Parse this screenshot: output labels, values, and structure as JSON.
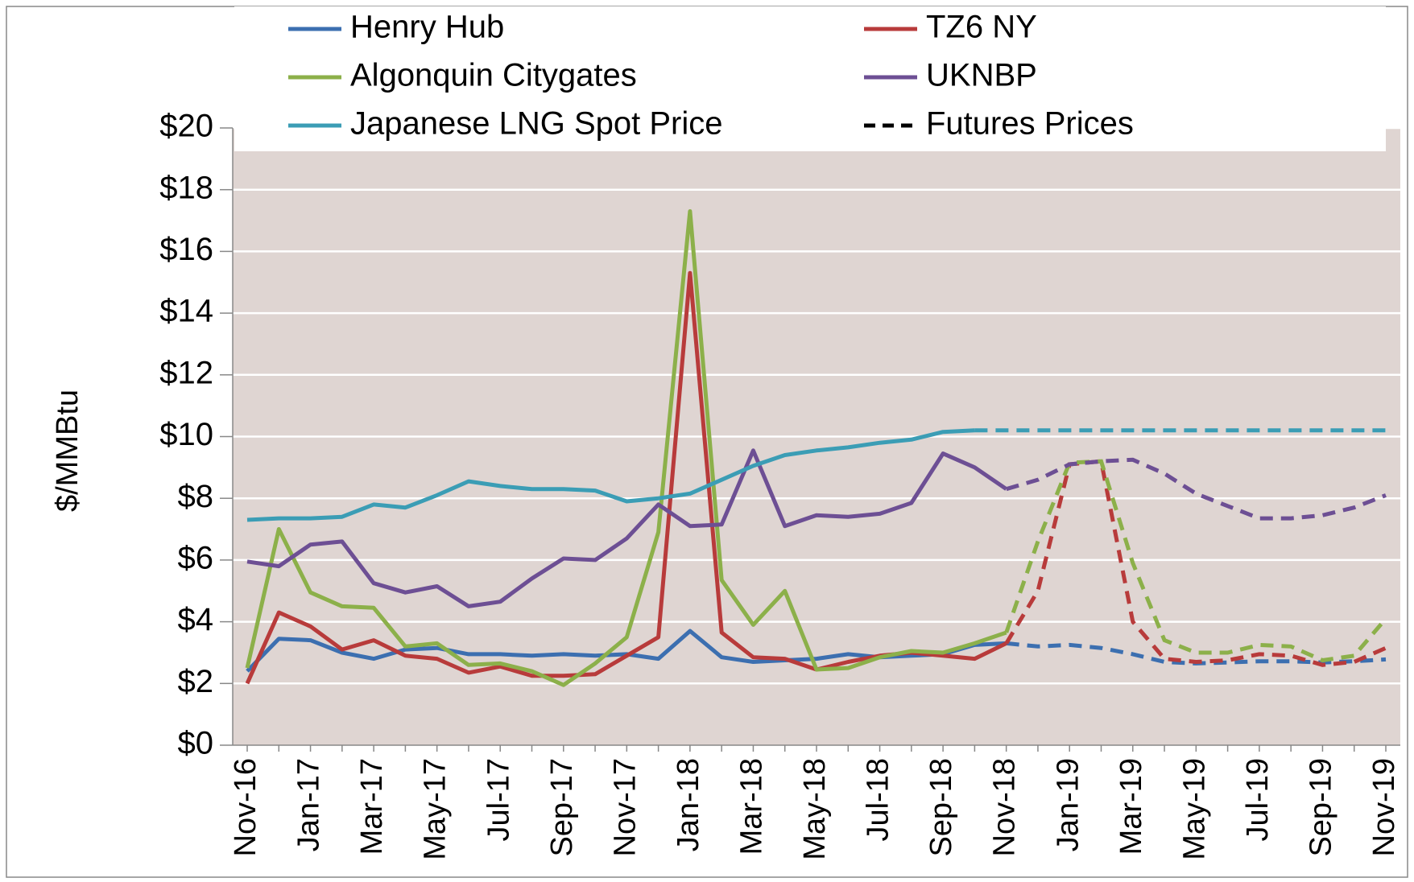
{
  "chart_data": {
    "type": "line",
    "y_label": "$/MMBtu",
    "categories": [
      "Nov-16",
      null,
      "Jan-17",
      null,
      "Mar-17",
      null,
      "May-17",
      null,
      "Jul-17",
      null,
      "Sep-17",
      null,
      "Nov-17",
      null,
      "Jan-18",
      null,
      "Mar-18",
      null,
      "May-18",
      null,
      "Jul-18",
      null,
      "Sep-18",
      null,
      "Nov-18",
      null,
      "Jan-19",
      null,
      "Mar-19",
      null,
      "May-19",
      null,
      "Jul-19",
      null,
      "Sep-19",
      null,
      "Nov-19"
    ],
    "ylim": [
      0,
      20
    ],
    "yticks": [
      {
        "value": 0,
        "label": "$0"
      },
      {
        "value": 2,
        "label": "$2"
      },
      {
        "value": 4,
        "label": "$4"
      },
      {
        "value": 6,
        "label": "$6"
      },
      {
        "value": 8,
        "label": "$8"
      },
      {
        "value": 10,
        "label": "$10"
      },
      {
        "value": 12,
        "label": "$12"
      },
      {
        "value": 14,
        "label": "$14"
      },
      {
        "value": 16,
        "label": "$16"
      },
      {
        "value": 18,
        "label": "$18"
      },
      {
        "value": 20,
        "label": "$20"
      }
    ],
    "grid": true,
    "plot_background": "#dfd5d2",
    "series": [
      {
        "name": "Henry Hub",
        "color": "#3c6fb0",
        "values": [
          2.4,
          3.45,
          3.4,
          3.0,
          2.8,
          3.1,
          3.15,
          2.95,
          2.95,
          2.9,
          2.95,
          2.9,
          2.95,
          2.8,
          3.7,
          2.85,
          2.7,
          2.75,
          2.8,
          2.95,
          2.85,
          2.9,
          2.95,
          3.25,
          3.3,
          null,
          null,
          null,
          null,
          null,
          null,
          null,
          null,
          null,
          null,
          null,
          null
        ],
        "futures": [
          null,
          null,
          null,
          null,
          null,
          null,
          null,
          null,
          null,
          null,
          null,
          null,
          null,
          null,
          null,
          null,
          null,
          null,
          null,
          null,
          null,
          null,
          null,
          null,
          3.3,
          3.2,
          3.25,
          3.15,
          2.95,
          2.7,
          2.65,
          2.68,
          2.72,
          2.72,
          2.68,
          2.72,
          2.78
        ]
      },
      {
        "name": "TZ6 NY",
        "color": "#b83b3b",
        "values": [
          2.0,
          4.3,
          3.85,
          3.1,
          3.4,
          2.9,
          2.8,
          2.35,
          2.55,
          2.25,
          2.25,
          2.3,
          2.9,
          3.5,
          15.3,
          3.65,
          2.85,
          2.8,
          2.45,
          2.7,
          2.9,
          3.0,
          2.9,
          2.8,
          3.3,
          null,
          null,
          null,
          null,
          null,
          null,
          null,
          null,
          null,
          null,
          null,
          null
        ],
        "futures": [
          null,
          null,
          null,
          null,
          null,
          null,
          null,
          null,
          null,
          null,
          null,
          null,
          null,
          null,
          null,
          null,
          null,
          null,
          null,
          null,
          null,
          null,
          null,
          null,
          3.3,
          5.0,
          9.1,
          9.2,
          4.0,
          2.8,
          2.7,
          2.75,
          2.95,
          2.9,
          2.6,
          2.7,
          3.15
        ]
      },
      {
        "name": "Algonquin Citygates",
        "color": "#8cb04a",
        "values": [
          2.5,
          7.0,
          4.95,
          4.5,
          4.45,
          3.2,
          3.3,
          2.6,
          2.65,
          2.4,
          1.95,
          2.65,
          3.5,
          6.9,
          17.3,
          5.35,
          3.9,
          5.0,
          2.45,
          2.5,
          2.85,
          3.05,
          3.0,
          3.3,
          3.65,
          null,
          null,
          null,
          null,
          null,
          null,
          null,
          null,
          null,
          null,
          null,
          null
        ],
        "futures": [
          null,
          null,
          null,
          null,
          null,
          null,
          null,
          null,
          null,
          null,
          null,
          null,
          null,
          null,
          null,
          null,
          null,
          null,
          null,
          null,
          null,
          null,
          null,
          null,
          3.65,
          6.6,
          9.15,
          9.2,
          5.9,
          3.4,
          3.0,
          3.0,
          3.25,
          3.2,
          2.75,
          2.9,
          4.1
        ]
      },
      {
        "name": "UKNBP",
        "color": "#6d4f94",
        "values": [
          5.95,
          5.8,
          6.5,
          6.6,
          5.25,
          4.95,
          5.15,
          4.5,
          4.65,
          5.4,
          6.05,
          6.0,
          6.7,
          7.8,
          7.1,
          7.15,
          9.55,
          7.1,
          7.45,
          7.4,
          7.5,
          7.85,
          9.45,
          9.0,
          8.3,
          null,
          null,
          null,
          null,
          null,
          null,
          null,
          null,
          null,
          null,
          null,
          null
        ],
        "futures": [
          null,
          null,
          null,
          null,
          null,
          null,
          null,
          null,
          null,
          null,
          null,
          null,
          null,
          null,
          null,
          null,
          null,
          null,
          null,
          null,
          null,
          null,
          null,
          null,
          8.3,
          8.6,
          9.1,
          9.2,
          9.25,
          8.8,
          8.15,
          7.75,
          7.35,
          7.35,
          7.45,
          7.7,
          8.1
        ]
      },
      {
        "name": "Japanese LNG Spot Price",
        "color": "#3b9db5",
        "values": [
          7.3,
          7.35,
          7.35,
          7.4,
          7.8,
          7.7,
          8.1,
          8.55,
          8.4,
          8.3,
          8.3,
          8.25,
          7.9,
          8.0,
          8.15,
          8.6,
          9.05,
          9.4,
          9.55,
          9.65,
          9.8,
          9.9,
          10.15,
          10.2,
          null,
          null,
          null,
          null,
          null,
          null,
          null,
          null,
          null,
          null,
          null,
          null,
          null
        ],
        "futures": [
          null,
          null,
          null,
          null,
          null,
          null,
          null,
          null,
          null,
          null,
          null,
          null,
          null,
          null,
          null,
          null,
          null,
          null,
          null,
          null,
          null,
          null,
          null,
          10.2,
          10.2,
          10.2,
          10.2,
          10.2,
          10.2,
          10.2,
          10.2,
          10.2,
          10.2,
          10.2,
          10.2,
          10.2,
          10.2
        ]
      }
    ],
    "futures_key": {
      "name": "Futures Prices",
      "color": "#000000"
    }
  }
}
